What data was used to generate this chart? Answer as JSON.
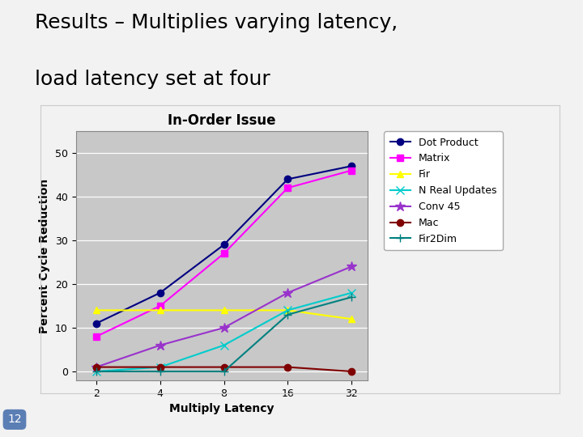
{
  "title": "In-Order Issue",
  "xlabel": "Multiply Latency",
  "ylabel": "Percent Cycle Reduction",
  "slide_title_line1": "Results – Multiplies varying latency,",
  "slide_title_line2": "load latency set at four",
  "slide_number": "12",
  "x": [
    2,
    4,
    8,
    16,
    32
  ],
  "series": [
    {
      "label": "Dot Product",
      "color": "#000080",
      "marker": "o",
      "markersize": 6,
      "markerfacecolor": "#000080",
      "values": [
        11,
        18,
        29,
        44,
        47
      ]
    },
    {
      "label": "Matrix",
      "color": "#FF00FF",
      "marker": "s",
      "markersize": 6,
      "markerfacecolor": "#FF00FF",
      "values": [
        8,
        15,
        27,
        42,
        46
      ]
    },
    {
      "label": "Fir",
      "color": "#FFFF00",
      "marker": "^",
      "markersize": 6,
      "markerfacecolor": "#FFFF00",
      "values": [
        14,
        14,
        14,
        14,
        12
      ]
    },
    {
      "label": "N Real Updates",
      "color": "#00CCCC",
      "marker": "x",
      "markersize": 7,
      "markerfacecolor": "#00CCCC",
      "values": [
        0,
        1,
        6,
        14,
        18
      ]
    },
    {
      "label": "Conv 45",
      "color": "#9933CC",
      "marker": "*",
      "markersize": 9,
      "markerfacecolor": "#9933CC",
      "values": [
        1,
        6,
        10,
        18,
        24
      ]
    },
    {
      "label": "Mac",
      "color": "#800000",
      "marker": "o",
      "markersize": 6,
      "markerfacecolor": "#800000",
      "values": [
        1,
        1,
        1,
        1,
        0
      ]
    },
    {
      "label": "Fir2Dim",
      "color": "#008080",
      "marker": "+",
      "markersize": 7,
      "markerfacecolor": "#008080",
      "values": [
        0,
        0,
        0,
        13,
        17
      ]
    }
  ],
  "ylim": [
    -2,
    55
  ],
  "yticks": [
    0,
    10,
    20,
    30,
    40,
    50
  ],
  "plot_area_color": "#C8C8C8",
  "outer_bg": "#F2F2F2",
  "title_fontsize": 12,
  "axis_label_fontsize": 10,
  "legend_fontsize": 9,
  "slide_title_fontsize": 18
}
